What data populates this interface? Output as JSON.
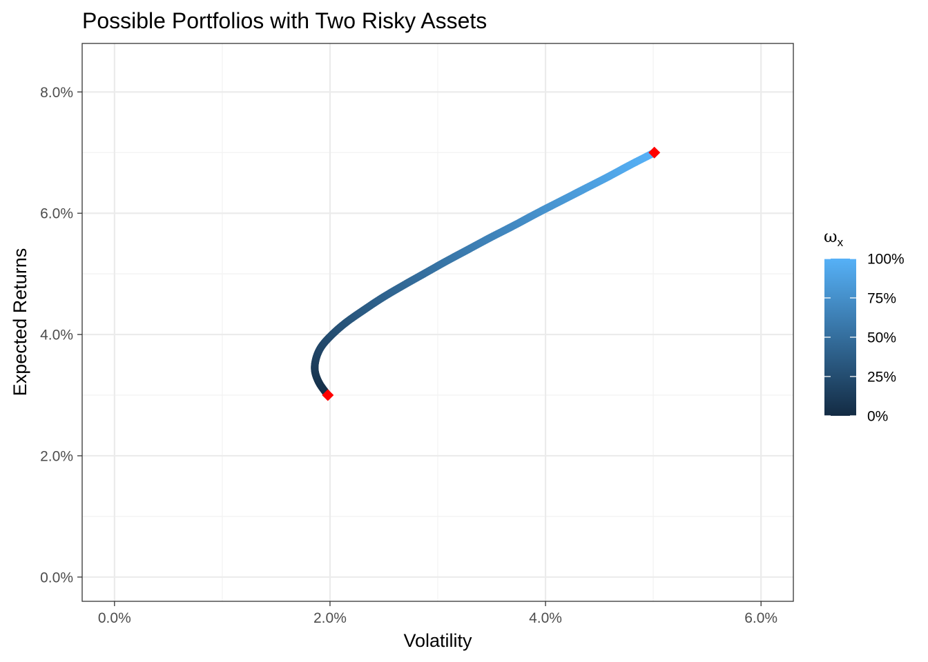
{
  "chart_data": {
    "type": "line",
    "title": "Possible Portfolios with Two Risky Assets",
    "xlabel": "Volatility",
    "ylabel": "Expected Returns",
    "xlim": [
      -0.003,
      0.063
    ],
    "ylim": [
      -0.004,
      0.088
    ],
    "x_ticks": [
      0,
      0.02,
      0.04,
      0.06
    ],
    "x_tick_labels": [
      "0.0%",
      "2.0%",
      "4.0%",
      "6.0%"
    ],
    "y_ticks": [
      0,
      0.02,
      0.04,
      0.06,
      0.08
    ],
    "y_tick_labels": [
      "0.0%",
      "2.0%",
      "4.0%",
      "6.0%",
      "8.0%"
    ],
    "grid": true,
    "legend_position": "right",
    "curve": {
      "name": "Portfolios",
      "color_by": "weight_x",
      "color_low": "#132B43",
      "color_high": "#56B1F7",
      "weight_x": [
        0.0,
        0.05,
        0.1,
        0.15,
        0.2,
        0.25,
        0.3,
        0.35,
        0.4,
        0.45,
        0.5,
        0.55,
        0.6,
        0.65,
        0.7,
        0.75,
        0.8,
        0.85,
        0.9,
        0.95,
        1.0
      ],
      "volatility": [
        0.0198,
        0.019,
        0.0186,
        0.0187,
        0.0192,
        0.0202,
        0.0215,
        0.0231,
        0.0248,
        0.0267,
        0.0287,
        0.0307,
        0.0328,
        0.0349,
        0.0371,
        0.0392,
        0.0414,
        0.0436,
        0.0458,
        0.0479,
        0.0501
      ],
      "returns": [
        0.03,
        0.032,
        0.034,
        0.036,
        0.038,
        0.04,
        0.042,
        0.044,
        0.046,
        0.048,
        0.05,
        0.052,
        0.054,
        0.056,
        0.058,
        0.06,
        0.062,
        0.064,
        0.066,
        0.068,
        0.07
      ]
    },
    "endpoints": {
      "color": "#FF0000",
      "points": [
        {
          "volatility": 0.0198,
          "returns": 0.03
        },
        {
          "volatility": 0.0501,
          "returns": 0.07
        }
      ]
    },
    "legend": {
      "title_symbol": "ω",
      "title_subscript": "x",
      "breaks": [
        0,
        0.25,
        0.5,
        0.75,
        1.0
      ],
      "labels": [
        "0%",
        "25%",
        "50%",
        "75%",
        "100%"
      ]
    }
  }
}
